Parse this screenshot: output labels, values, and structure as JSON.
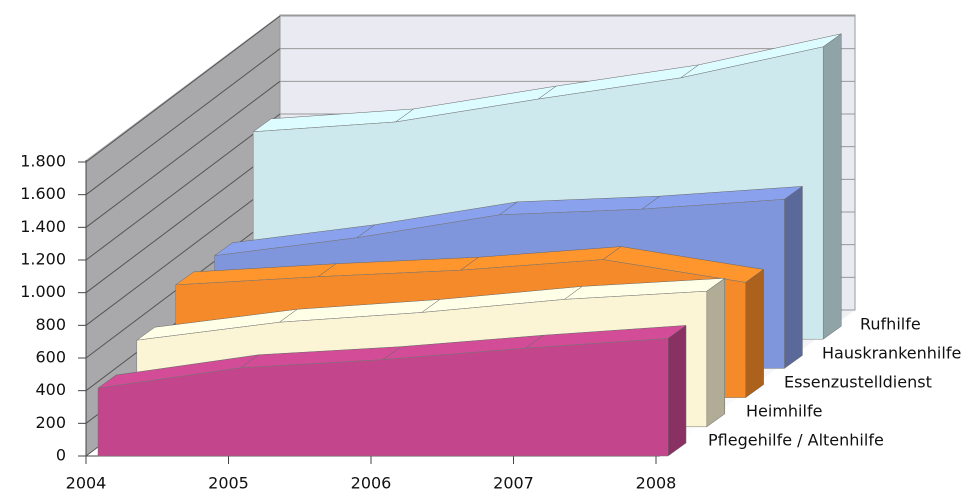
{
  "chart_data": {
    "type": "area3d",
    "categories": [
      "2004",
      "2005",
      "2006",
      "2007",
      "2008"
    ],
    "series": [
      {
        "name": "Pflegehilfe / Altenhilfe",
        "color": "#c3468c",
        "values": [
          416,
          540,
          590,
          660,
          720
        ]
      },
      {
        "name": "Heimhilfe",
        "color": "#fbf5d6",
        "values": [
          530,
          640,
          700,
          780,
          830
        ]
      },
      {
        "name": "Essenzustelldienst",
        "color": "#f58a2a",
        "values": [
          690,
          740,
          780,
          845,
          705
        ]
      },
      {
        "name": "Hauskrankenhilfe",
        "color": "#8096dc",
        "values": [
          690,
          800,
          940,
          975,
          1035
        ]
      },
      {
        "name": "Rufhilfe",
        "color": "#cde9ee",
        "values": [
          1270,
          1330,
          1470,
          1600,
          1790
        ]
      }
    ],
    "ylim": [
      0,
      1800
    ],
    "yticks": [
      0,
      200,
      400,
      600,
      800,
      {
        "value": 1000,
        "label": "1.000"
      },
      {
        "value": 1200,
        "label": "1.200"
      },
      {
        "value": 1400,
        "label": "1.400"
      },
      {
        "value": 1600,
        "label": "1.600"
      },
      {
        "value": 1800,
        "label": "1.800"
      }
    ],
    "grid": true
  }
}
